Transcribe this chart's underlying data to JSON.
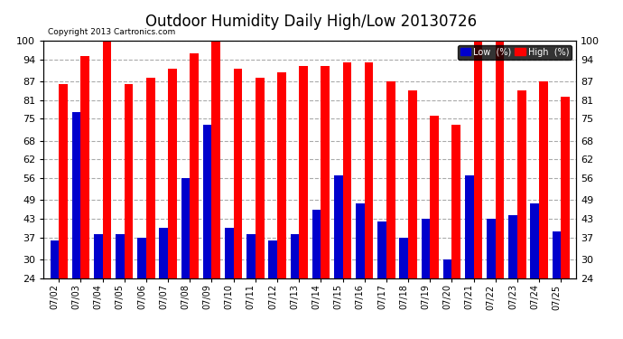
{
  "title": "Outdoor Humidity Daily High/Low 20130726",
  "copyright": "Copyright 2013 Cartronics.com",
  "dates": [
    "07/02",
    "07/03",
    "07/04",
    "07/05",
    "07/06",
    "07/07",
    "07/08",
    "07/09",
    "07/10",
    "07/11",
    "07/12",
    "07/13",
    "07/14",
    "07/15",
    "07/16",
    "07/17",
    "07/18",
    "07/19",
    "07/20",
    "07/21",
    "07/22",
    "07/23",
    "07/24",
    "07/25"
  ],
  "high": [
    86,
    95,
    100,
    86,
    88,
    91,
    96,
    100,
    91,
    88,
    90,
    92,
    92,
    93,
    93,
    87,
    84,
    76,
    73,
    100,
    100,
    84,
    87,
    82
  ],
  "low": [
    36,
    77,
    38,
    38,
    37,
    40,
    56,
    73,
    40,
    38,
    36,
    38,
    46,
    57,
    48,
    42,
    37,
    43,
    30,
    57,
    43,
    44,
    48,
    39
  ],
  "ylim": [
    24,
    100
  ],
  "yticks": [
    24,
    30,
    37,
    43,
    49,
    56,
    62,
    68,
    75,
    81,
    87,
    94,
    100
  ],
  "bar_color_high": "#ff0000",
  "bar_color_low": "#0000cc",
  "background_color": "#ffffff",
  "plot_bg_color": "#ffffff",
  "grid_color": "#aaaaaa",
  "title_fontsize": 12,
  "legend_low_label": "Low  (%)",
  "legend_high_label": "High  (%)"
}
